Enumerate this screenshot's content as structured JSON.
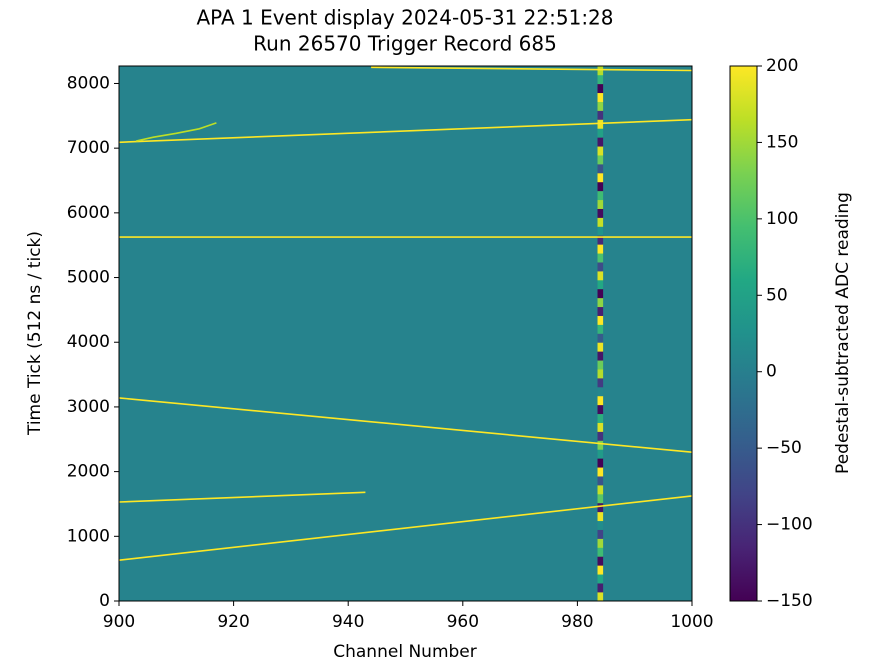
{
  "chart_data": {
    "type": "heatmap",
    "title": "APA 1 Event display 2024-05-31 22:51:28",
    "subtitle": "Run 26570 Trigger Record 685",
    "x_label": "Channel Number",
    "y_label": "Time Tick (512 ns / tick)",
    "colorbar_label": "Pedestal-subtracted ADC reading",
    "xlim": [
      900,
      1000
    ],
    "ylim": [
      0,
      8270
    ],
    "xticks": [
      900,
      920,
      940,
      960,
      980,
      1000
    ],
    "yticks": [
      0,
      1000,
      2000,
      3000,
      4000,
      5000,
      6000,
      7000,
      8000
    ],
    "clim": [
      -150,
      200
    ],
    "cticks": [
      {
        "value": -150,
        "label": "−150"
      },
      {
        "value": -100,
        "label": "−100"
      },
      {
        "value": -50,
        "label": "−50"
      },
      0,
      50,
      100,
      150,
      200
    ],
    "colormap": "viridis",
    "background_value": 5,
    "series": [
      {
        "name": "track-1",
        "color": "#fde725",
        "x": [
          900,
          1000
        ],
        "y": [
          7090,
          7440
        ]
      },
      {
        "name": "track-2",
        "color": "#fde725",
        "x": [
          900,
          1000
        ],
        "y": [
          5625,
          5625
        ]
      },
      {
        "name": "track-3",
        "color": "#fde725",
        "x": [
          900,
          1000
        ],
        "y": [
          3140,
          2300
        ]
      },
      {
        "name": "track-4",
        "color": "#fde725",
        "x": [
          900,
          1000
        ],
        "y": [
          630,
          1625
        ]
      },
      {
        "name": "track-5",
        "color": "#fde725",
        "x": [
          900,
          943
        ],
        "y": [
          1530,
          1680
        ]
      },
      {
        "name": "track-6",
        "color": "#fde725",
        "x": [
          944,
          1000
        ],
        "y": [
          8250,
          8200
        ]
      },
      {
        "name": "track-7",
        "color": "#bddf26",
        "x": [
          903,
          906,
          910,
          914,
          917
        ],
        "y": [
          7110,
          7170,
          7230,
          7300,
          7390
        ]
      }
    ],
    "noisy_channel": {
      "channel": 984,
      "values": [
        180,
        -120,
        60,
        200,
        -140,
        90,
        150,
        -80,
        20,
        190,
        -130,
        110,
        170,
        -60,
        200,
        -150,
        40,
        130,
        -100,
        180,
        70,
        -140,
        200,
        10,
        -90,
        160,
        120,
        -130,
        190,
        -50,
        80,
        200,
        -120,
        140,
        -150,
        60,
        180,
        -70,
        100,
        200,
        -110,
        30,
        170,
        -140,
        150,
        90,
        -150,
        200,
        -60,
        120,
        180,
        -130,
        50,
        190,
        -100,
        140,
        200,
        -150,
        80,
        160
      ]
    }
  }
}
